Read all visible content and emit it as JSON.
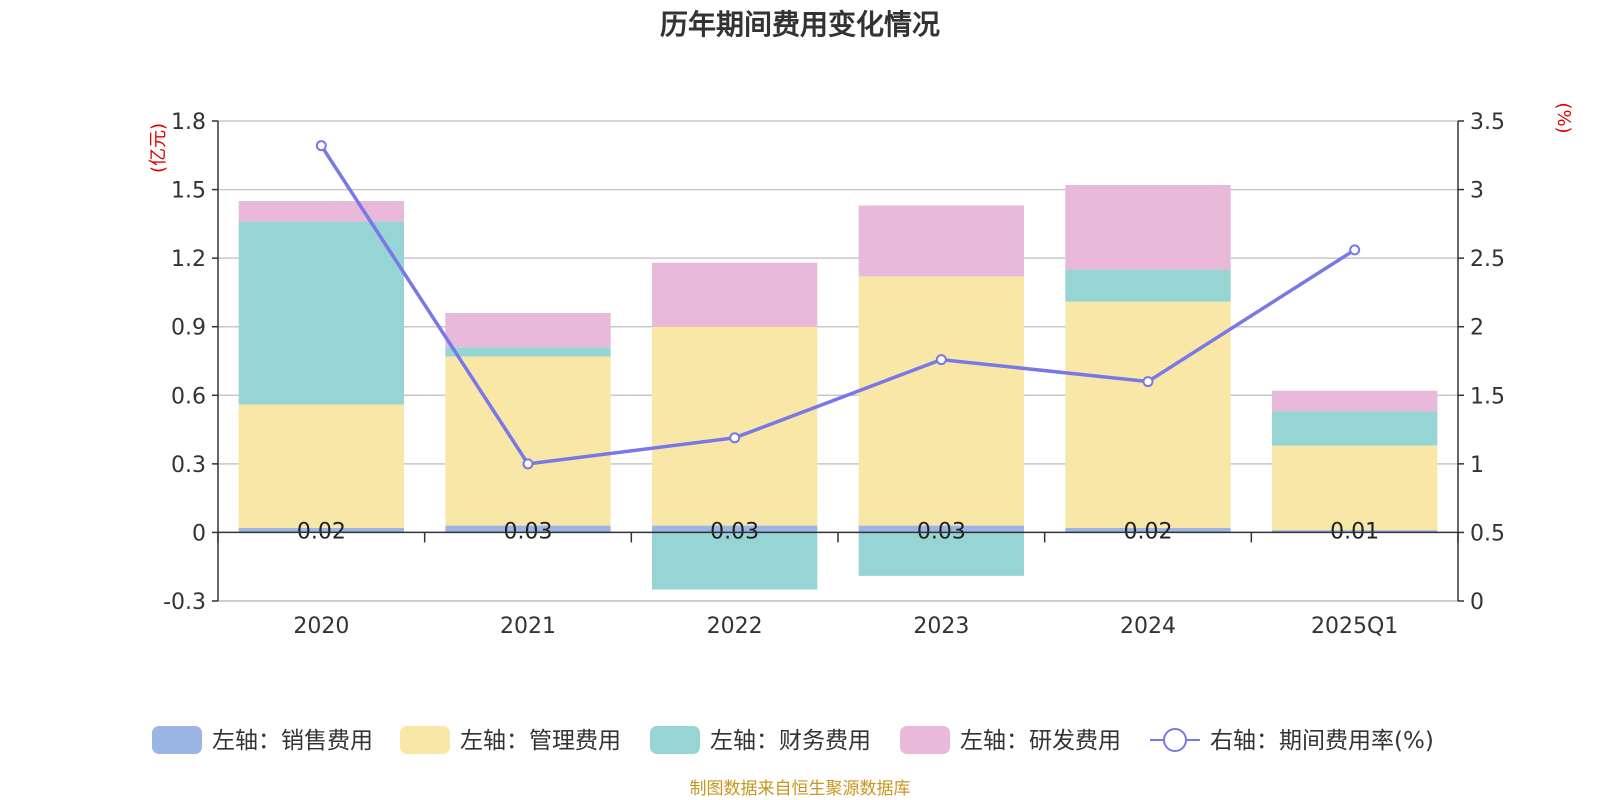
{
  "chart_data": {
    "type": "bar",
    "title": "历年期间费用变化情况",
    "categories": [
      "2020",
      "2021",
      "2022",
      "2023",
      "2024",
      "2025Q1"
    ],
    "series": [
      {
        "name": "左轴：销售费用",
        "axis": "left",
        "stack": true,
        "color": "#9bb5e4",
        "values": [
          0.02,
          0.03,
          0.03,
          0.03,
          0.02,
          0.01
        ]
      },
      {
        "name": "左轴：管理费用",
        "axis": "left",
        "stack": true,
        "color": "#f8e7a7",
        "values": [
          0.54,
          0.74,
          0.87,
          1.09,
          0.99,
          0.37
        ]
      },
      {
        "name": "左轴：财务费用",
        "axis": "left",
        "stack": true,
        "color": "#97d4d4",
        "values": [
          0.8,
          0.04,
          -0.25,
          -0.19,
          0.14,
          0.15
        ]
      },
      {
        "name": "左轴：研发费用",
        "axis": "left",
        "stack": true,
        "color": "#e8b9d9",
        "values": [
          0.09,
          0.15,
          0.28,
          0.31,
          0.37,
          0.09
        ]
      },
      {
        "name": "右轴：期间费用率(%)",
        "axis": "right",
        "type": "line",
        "color": "#7878e8",
        "values": [
          3.32,
          1.0,
          1.19,
          1.76,
          1.6,
          2.56
        ]
      }
    ],
    "data_labels": [
      "0.02",
      "0.03",
      "0.03",
      "0.03",
      "0.02",
      "0.01"
    ],
    "y_left": {
      "unit": "(亿元)",
      "range": [
        -0.3,
        1.8
      ],
      "ticks": [
        "-0.3",
        "0",
        "0.3",
        "0.6",
        "0.9",
        "1.2",
        "1.5",
        "1.8"
      ]
    },
    "y_right": {
      "unit": "(%)",
      "range": [
        0,
        3.5
      ],
      "ticks": [
        "0",
        "0.5",
        "1",
        "1.5",
        "2",
        "2.5",
        "3",
        "3.5"
      ]
    },
    "grid": true,
    "legend_position": "bottom"
  },
  "source_note": "制图数据来自恒生聚源数据库"
}
